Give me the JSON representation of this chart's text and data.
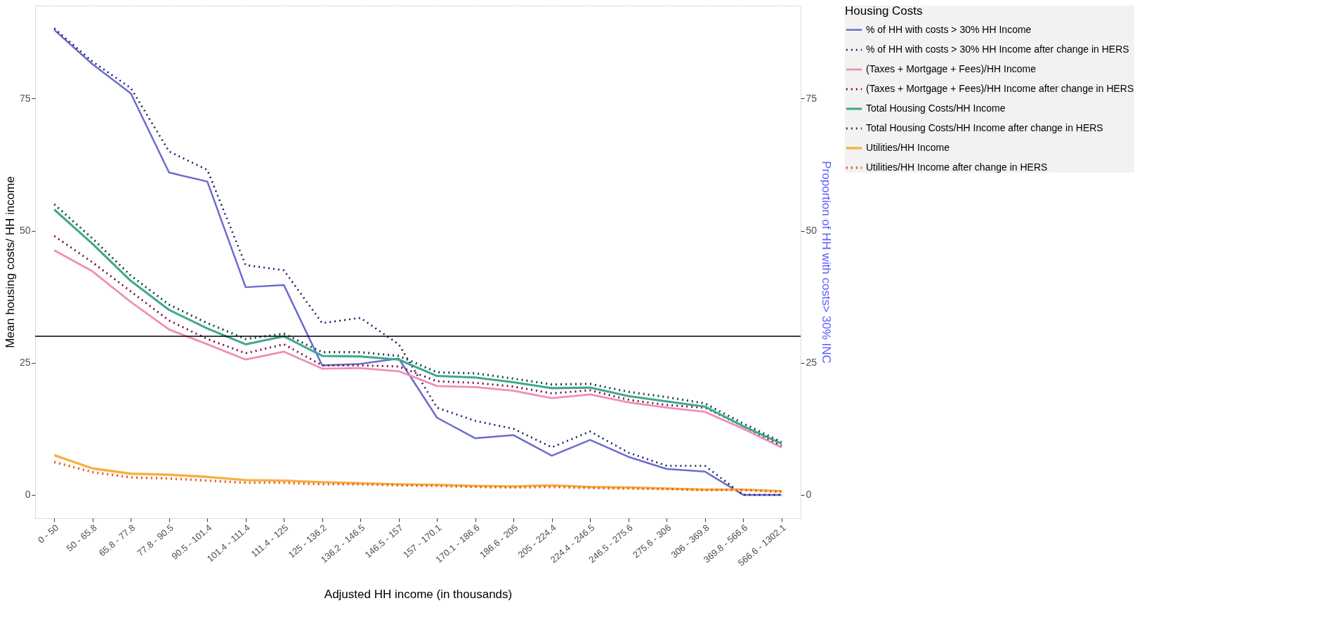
{
  "chart_data": {
    "type": "line",
    "xlabel": "Adjusted HH income (in thousands)",
    "ylabel": "Mean housing costs/ HH income",
    "y2label": "Proportion of HH with costs> 30% INC",
    "legend_title": "Housing Costs",
    "categories": [
      "0 - 50",
      "50 - 65.8",
      "65.8 - 77.8",
      "77.8 - 90.5",
      "90.5 - 101.4",
      "101.4 - 111.4",
      "111.4 - 125",
      "125 - 136.2",
      "136.2 - 146.5",
      "146.5 - 157",
      "157 - 170.1",
      "170.1 - 186.6",
      "186.6 - 205",
      "205 - 224.4",
      "224.4 - 246.5",
      "246.5 - 275.6",
      "275.6 - 306",
      "306 - 369.8",
      "369.8 - 566.6",
      "566.6 - 1302.1"
    ],
    "series": [
      {
        "name": "% of HH with costs > 30% HH Income",
        "color": "#6a6ccc",
        "line_style": "solid",
        "values": [
          88,
          81.5,
          76,
          61,
          59.3,
          39.3,
          39.7,
          24.5,
          24.8,
          25.8,
          14.6,
          10.7,
          11.3,
          7.4,
          10.4,
          7.2,
          4.9,
          4.4,
          0,
          0
        ]
      },
      {
        "name": "% of HH with costs > 30% HH Income after change in HERS",
        "color": "#1d1a6e",
        "line_style": "dotted",
        "values": [
          88.3,
          82,
          77,
          65,
          61.5,
          43.5,
          42.5,
          32.5,
          33.5,
          28.5,
          16.5,
          14,
          12.5,
          9,
          12,
          8,
          5.5,
          5.5,
          0,
          0
        ]
      },
      {
        "name": "(Taxes + Mortgage + Fees)/HH Income",
        "color": "#ee8fb4",
        "line_style": "solid",
        "values": [
          46.3,
          42.3,
          36.5,
          31.3,
          28.5,
          25.6,
          27.1,
          23.9,
          24,
          23.4,
          20.6,
          20.4,
          19.7,
          18.3,
          19,
          17.5,
          16.5,
          15.7,
          12.5,
          9
        ]
      },
      {
        "name": "(Taxes + Mortgage + Fees)/HH Income after change in HERS",
        "color": "#7a0b47",
        "line_style": "dotted",
        "values": [
          49,
          44,
          38.5,
          33,
          29.5,
          26.8,
          28.5,
          24.5,
          24.5,
          24.3,
          21.5,
          21.2,
          20.5,
          19.2,
          19.8,
          18,
          17,
          16.5,
          13,
          9.3
        ]
      },
      {
        "name": "Total Housing Costs/HH Income",
        "color": "#3fa890",
        "line_style": "solid",
        "values": [
          54,
          47.5,
          40.5,
          35,
          31.5,
          28.5,
          30,
          26.3,
          26.2,
          25.6,
          22.5,
          22.2,
          21.3,
          20.2,
          20.3,
          18.7,
          17.7,
          16.7,
          13,
          9.7
        ]
      },
      {
        "name": "Total Housing Costs/HH Income after change in HERS",
        "color": "#1c4f3a",
        "line_style": "dotted",
        "values": [
          55,
          48.5,
          41.5,
          36,
          32.5,
          29.5,
          30.5,
          27,
          27,
          26.3,
          23.2,
          23,
          22,
          20.9,
          21,
          19.5,
          18.5,
          17.3,
          13.5,
          10
        ]
      },
      {
        "name": "Utilities/HH Income",
        "color": "#f5b041",
        "line_style": "solid",
        "values": [
          7.5,
          5,
          4,
          3.8,
          3.4,
          2.8,
          2.7,
          2.4,
          2.2,
          2,
          1.9,
          1.7,
          1.6,
          1.8,
          1.5,
          1.4,
          1.2,
          1,
          1,
          0.7
        ]
      },
      {
        "name": "Utilities/HH Income after change in HERS",
        "color": "#e8541a",
        "line_style": "dotted",
        "values": [
          6.2,
          4.3,
          3.3,
          3.1,
          2.7,
          2.3,
          2.3,
          2,
          2,
          1.8,
          1.7,
          1.5,
          1.4,
          1.5,
          1.3,
          1.2,
          1.1,
          0.9,
          0.9,
          0.6
        ]
      }
    ],
    "ylim": [
      -4.4,
      92.6
    ],
    "yticks": [
      0,
      25,
      50,
      75
    ],
    "y2lim": [
      -4.4,
      92.6
    ],
    "y2ticks": [
      0,
      25,
      50,
      75
    ],
    "ref_lines": [
      {
        "axis": "y",
        "value": 30,
        "color": "#000000"
      }
    ],
    "grid": true,
    "legend": "right"
  }
}
